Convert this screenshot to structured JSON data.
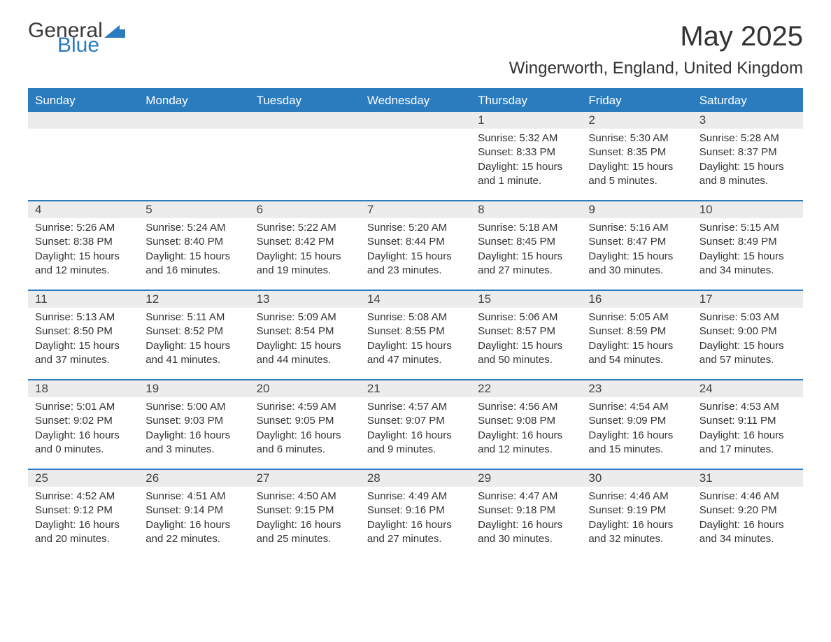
{
  "logo": {
    "text1": "General",
    "text2": "Blue"
  },
  "title": "May 2025",
  "subtitle": "Wingerworth, England, United Kingdom",
  "theme": {
    "accent": "#2b7bbf",
    "header_text": "#ffffff",
    "daynum_bg": "#ececec",
    "body_text": "#333333",
    "background": "#ffffff"
  },
  "day_headers": [
    "Sunday",
    "Monday",
    "Tuesday",
    "Wednesday",
    "Thursday",
    "Friday",
    "Saturday"
  ],
  "weeks": [
    [
      {
        "n": "",
        "sr": "",
        "ss": "",
        "dl": ""
      },
      {
        "n": "",
        "sr": "",
        "ss": "",
        "dl": ""
      },
      {
        "n": "",
        "sr": "",
        "ss": "",
        "dl": ""
      },
      {
        "n": "",
        "sr": "",
        "ss": "",
        "dl": ""
      },
      {
        "n": "1",
        "sr": "Sunrise: 5:32 AM",
        "ss": "Sunset: 8:33 PM",
        "dl": "Daylight: 15 hours and 1 minute."
      },
      {
        "n": "2",
        "sr": "Sunrise: 5:30 AM",
        "ss": "Sunset: 8:35 PM",
        "dl": "Daylight: 15 hours and 5 minutes."
      },
      {
        "n": "3",
        "sr": "Sunrise: 5:28 AM",
        "ss": "Sunset: 8:37 PM",
        "dl": "Daylight: 15 hours and 8 minutes."
      }
    ],
    [
      {
        "n": "4",
        "sr": "Sunrise: 5:26 AM",
        "ss": "Sunset: 8:38 PM",
        "dl": "Daylight: 15 hours and 12 minutes."
      },
      {
        "n": "5",
        "sr": "Sunrise: 5:24 AM",
        "ss": "Sunset: 8:40 PM",
        "dl": "Daylight: 15 hours and 16 minutes."
      },
      {
        "n": "6",
        "sr": "Sunrise: 5:22 AM",
        "ss": "Sunset: 8:42 PM",
        "dl": "Daylight: 15 hours and 19 minutes."
      },
      {
        "n": "7",
        "sr": "Sunrise: 5:20 AM",
        "ss": "Sunset: 8:44 PM",
        "dl": "Daylight: 15 hours and 23 minutes."
      },
      {
        "n": "8",
        "sr": "Sunrise: 5:18 AM",
        "ss": "Sunset: 8:45 PM",
        "dl": "Daylight: 15 hours and 27 minutes."
      },
      {
        "n": "9",
        "sr": "Sunrise: 5:16 AM",
        "ss": "Sunset: 8:47 PM",
        "dl": "Daylight: 15 hours and 30 minutes."
      },
      {
        "n": "10",
        "sr": "Sunrise: 5:15 AM",
        "ss": "Sunset: 8:49 PM",
        "dl": "Daylight: 15 hours and 34 minutes."
      }
    ],
    [
      {
        "n": "11",
        "sr": "Sunrise: 5:13 AM",
        "ss": "Sunset: 8:50 PM",
        "dl": "Daylight: 15 hours and 37 minutes."
      },
      {
        "n": "12",
        "sr": "Sunrise: 5:11 AM",
        "ss": "Sunset: 8:52 PM",
        "dl": "Daylight: 15 hours and 41 minutes."
      },
      {
        "n": "13",
        "sr": "Sunrise: 5:09 AM",
        "ss": "Sunset: 8:54 PM",
        "dl": "Daylight: 15 hours and 44 minutes."
      },
      {
        "n": "14",
        "sr": "Sunrise: 5:08 AM",
        "ss": "Sunset: 8:55 PM",
        "dl": "Daylight: 15 hours and 47 minutes."
      },
      {
        "n": "15",
        "sr": "Sunrise: 5:06 AM",
        "ss": "Sunset: 8:57 PM",
        "dl": "Daylight: 15 hours and 50 minutes."
      },
      {
        "n": "16",
        "sr": "Sunrise: 5:05 AM",
        "ss": "Sunset: 8:59 PM",
        "dl": "Daylight: 15 hours and 54 minutes."
      },
      {
        "n": "17",
        "sr": "Sunrise: 5:03 AM",
        "ss": "Sunset: 9:00 PM",
        "dl": "Daylight: 15 hours and 57 minutes."
      }
    ],
    [
      {
        "n": "18",
        "sr": "Sunrise: 5:01 AM",
        "ss": "Sunset: 9:02 PM",
        "dl": "Daylight: 16 hours and 0 minutes."
      },
      {
        "n": "19",
        "sr": "Sunrise: 5:00 AM",
        "ss": "Sunset: 9:03 PM",
        "dl": "Daylight: 16 hours and 3 minutes."
      },
      {
        "n": "20",
        "sr": "Sunrise: 4:59 AM",
        "ss": "Sunset: 9:05 PM",
        "dl": "Daylight: 16 hours and 6 minutes."
      },
      {
        "n": "21",
        "sr": "Sunrise: 4:57 AM",
        "ss": "Sunset: 9:07 PM",
        "dl": "Daylight: 16 hours and 9 minutes."
      },
      {
        "n": "22",
        "sr": "Sunrise: 4:56 AM",
        "ss": "Sunset: 9:08 PM",
        "dl": "Daylight: 16 hours and 12 minutes."
      },
      {
        "n": "23",
        "sr": "Sunrise: 4:54 AM",
        "ss": "Sunset: 9:09 PM",
        "dl": "Daylight: 16 hours and 15 minutes."
      },
      {
        "n": "24",
        "sr": "Sunrise: 4:53 AM",
        "ss": "Sunset: 9:11 PM",
        "dl": "Daylight: 16 hours and 17 minutes."
      }
    ],
    [
      {
        "n": "25",
        "sr": "Sunrise: 4:52 AM",
        "ss": "Sunset: 9:12 PM",
        "dl": "Daylight: 16 hours and 20 minutes."
      },
      {
        "n": "26",
        "sr": "Sunrise: 4:51 AM",
        "ss": "Sunset: 9:14 PM",
        "dl": "Daylight: 16 hours and 22 minutes."
      },
      {
        "n": "27",
        "sr": "Sunrise: 4:50 AM",
        "ss": "Sunset: 9:15 PM",
        "dl": "Daylight: 16 hours and 25 minutes."
      },
      {
        "n": "28",
        "sr": "Sunrise: 4:49 AM",
        "ss": "Sunset: 9:16 PM",
        "dl": "Daylight: 16 hours and 27 minutes."
      },
      {
        "n": "29",
        "sr": "Sunrise: 4:47 AM",
        "ss": "Sunset: 9:18 PM",
        "dl": "Daylight: 16 hours and 30 minutes."
      },
      {
        "n": "30",
        "sr": "Sunrise: 4:46 AM",
        "ss": "Sunset: 9:19 PM",
        "dl": "Daylight: 16 hours and 32 minutes."
      },
      {
        "n": "31",
        "sr": "Sunrise: 4:46 AM",
        "ss": "Sunset: 9:20 PM",
        "dl": "Daylight: 16 hours and 34 minutes."
      }
    ]
  ]
}
